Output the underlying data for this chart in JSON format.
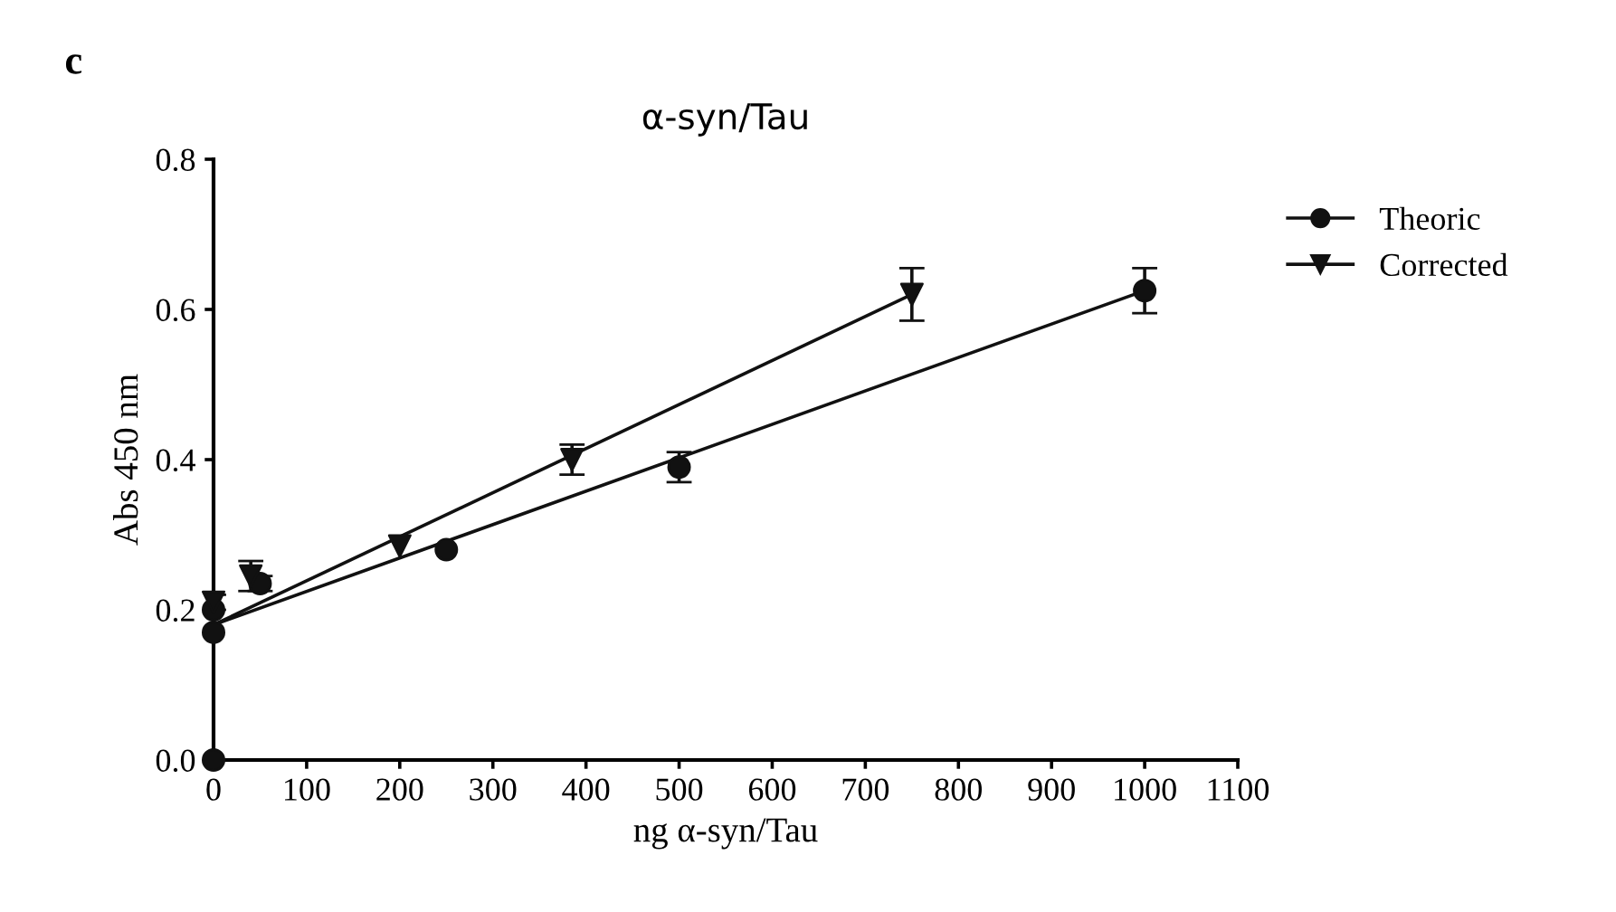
{
  "chart_data": {
    "type": "scatter",
    "title": "α-syn/Tau",
    "xlabel": "ng α-syn/Tau",
    "ylabel": "Abs 450 nm",
    "annotations": [
      "c"
    ],
    "xlim": [
      0,
      1100
    ],
    "xticks": [
      0,
      100,
      200,
      300,
      400,
      500,
      600,
      700,
      800,
      900,
      1000,
      1100
    ],
    "ylim": [
      0,
      0.8
    ],
    "yticks": [
      {
        "value": 0,
        "label": "0.0"
      },
      0.2,
      0.4,
      0.6,
      0.8
    ],
    "grid": false,
    "legend": "top right",
    "series": [
      {
        "name": "Theoric",
        "color": "#111111",
        "marker": "circle",
        "x": [
          0,
          0,
          0,
          50,
          250,
          500,
          1000
        ],
        "values": [
          0.0,
          0.17,
          0.2,
          0.235,
          0.28,
          0.39,
          0.625
        ],
        "errors": [
          null,
          null,
          null,
          0.01,
          null,
          0.02,
          0.03
        ]
      },
      {
        "name": "Corrected",
        "color": "#111111",
        "marker": "triangle",
        "x": [
          0,
          40,
          200,
          385,
          750
        ],
        "values": [
          0.21,
          0.245,
          0.285,
          0.4,
          0.62
        ],
        "errors": [
          0.01,
          0.02,
          null,
          0.02,
          0.035
        ]
      },
      {
        "type": "line",
        "color": "#111111",
        "marker": "none",
        "x": [
          0,
          1000
        ],
        "values": [
          0.18,
          0.625
        ]
      },
      {
        "type": "line",
        "color": "#111111",
        "marker": "none",
        "x": [
          0,
          750
        ],
        "values": [
          0.18,
          0.62
        ]
      }
    ]
  }
}
